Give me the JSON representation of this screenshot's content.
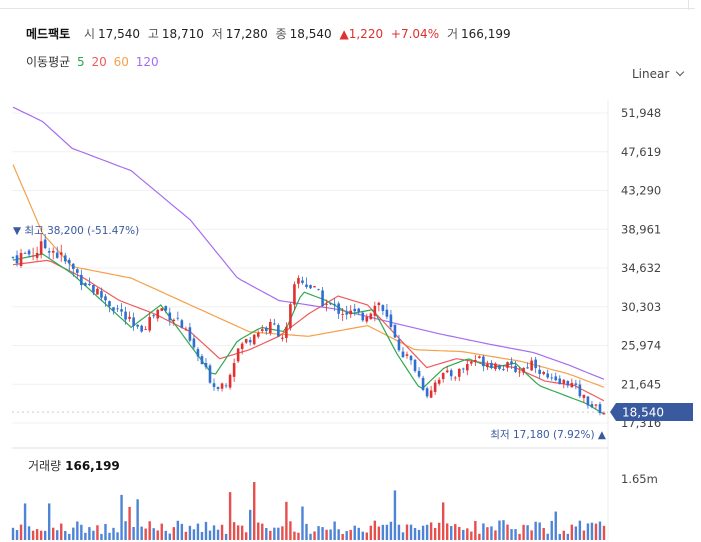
{
  "header": {
    "name": "메드팩토",
    "open_label": "시",
    "open": "17,540",
    "high_label": "고",
    "high": "18,710",
    "low_label": "저",
    "low": "17,280",
    "close_label": "종",
    "close": "18,540",
    "change": "▲1,220",
    "change_pct": "+7.04%",
    "volume_label": "거",
    "volume": "166,199"
  },
  "ma_legend": {
    "title": "이동평균",
    "p5": "5",
    "p20": "20",
    "p60": "60",
    "p120": "120"
  },
  "scale": {
    "label": "Linear"
  },
  "colors": {
    "up": "#e0302f",
    "down": "#2f6fcf",
    "ma5": "#2fa84f",
    "ma20": "#f05a5a",
    "ma60": "#f5a04a",
    "ma120": "#a66cf0",
    "price_tag": "#3a5aa0",
    "annotation": "#3a5aa0"
  },
  "annotations": {
    "high": "▼ 최고 38,200 (-51.47%)",
    "low": "최저 17,180 (7.92%) ▲"
  },
  "current_price": "18,540",
  "volume_panel": {
    "label": "거래량",
    "value": "166,199",
    "axis_tick": "1.65m"
  },
  "chart_data": {
    "type": "candlestick",
    "y_axis_ticks": [
      "51,948",
      "47,619",
      "43,290",
      "38,961",
      "34,632",
      "30,303",
      "25,974",
      "21,645",
      "17,316"
    ],
    "ylim": [
      17316,
      51948
    ],
    "ma_keypoints": {
      "ma5": [
        [
          0,
          35500
        ],
        [
          0.05,
          36200
        ],
        [
          0.1,
          34000
        ],
        [
          0.15,
          31000
        ],
        [
          0.2,
          28000
        ],
        [
          0.25,
          30500
        ],
        [
          0.3,
          26000
        ],
        [
          0.34,
          22500
        ],
        [
          0.38,
          26500
        ],
        [
          0.42,
          28000
        ],
        [
          0.46,
          27500
        ],
        [
          0.49,
          32000
        ],
        [
          0.53,
          31000
        ],
        [
          0.57,
          29500
        ],
        [
          0.61,
          30000
        ],
        [
          0.65,
          25000
        ],
        [
          0.69,
          21000
        ],
        [
          0.73,
          23500
        ],
        [
          0.77,
          24500
        ],
        [
          0.81,
          23500
        ],
        [
          0.85,
          24000
        ],
        [
          0.89,
          21500
        ],
        [
          0.93,
          20500
        ],
        [
          0.97,
          19500
        ],
        [
          1.0,
          18300
        ]
      ],
      "ma20": [
        [
          0,
          35000
        ],
        [
          0.06,
          35500
        ],
        [
          0.12,
          33500
        ],
        [
          0.18,
          31000
        ],
        [
          0.24,
          29500
        ],
        [
          0.3,
          27500
        ],
        [
          0.35,
          24500
        ],
        [
          0.4,
          25500
        ],
        [
          0.45,
          27000
        ],
        [
          0.5,
          29500
        ],
        [
          0.55,
          31500
        ],
        [
          0.6,
          30500
        ],
        [
          0.65,
          27000
        ],
        [
          0.7,
          23500
        ],
        [
          0.75,
          24500
        ],
        [
          0.8,
          24000
        ],
        [
          0.85,
          23500
        ],
        [
          0.9,
          22000
        ],
        [
          0.95,
          21500
        ],
        [
          1.0,
          19800
        ]
      ],
      "ma60": [
        [
          0,
          46200
        ],
        [
          0.05,
          38500
        ],
        [
          0.1,
          34800
        ],
        [
          0.2,
          33500
        ],
        [
          0.3,
          30500
        ],
        [
          0.4,
          27500
        ],
        [
          0.5,
          27000
        ],
        [
          0.6,
          28200
        ],
        [
          0.68,
          25500
        ],
        [
          0.76,
          25300
        ],
        [
          0.86,
          24200
        ],
        [
          0.94,
          22800
        ],
        [
          1.0,
          21300
        ]
      ],
      "ma120": [
        [
          0,
          52600
        ],
        [
          0.05,
          51000
        ],
        [
          0.1,
          48000
        ],
        [
          0.2,
          45500
        ],
        [
          0.3,
          40000
        ],
        [
          0.38,
          33500
        ],
        [
          0.45,
          31000
        ],
        [
          0.55,
          30000
        ],
        [
          0.65,
          28400
        ],
        [
          0.72,
          27300
        ],
        [
          0.8,
          26200
        ],
        [
          0.88,
          25200
        ],
        [
          0.94,
          23800
        ],
        [
          1.0,
          22200
        ]
      ]
    },
    "price_path": [
      [
        0,
        35800
      ],
      [
        0.03,
        36300
      ],
      [
        0.06,
        37200
      ],
      [
        0.1,
        34500
      ],
      [
        0.14,
        32000
      ],
      [
        0.18,
        29800
      ],
      [
        0.21,
        27500
      ],
      [
        0.25,
        30200
      ],
      [
        0.28,
        28800
      ],
      [
        0.31,
        25000
      ],
      [
        0.34,
        21500
      ],
      [
        0.36,
        21800
      ],
      [
        0.38,
        25500
      ],
      [
        0.41,
        27500
      ],
      [
        0.44,
        28200
      ],
      [
        0.46,
        26800
      ],
      [
        0.48,
        33500
      ],
      [
        0.5,
        32800
      ],
      [
        0.53,
        30500
      ],
      [
        0.56,
        29800
      ],
      [
        0.59,
        29200
      ],
      [
        0.62,
        30800
      ],
      [
        0.65,
        26000
      ],
      [
        0.68,
        23500
      ],
      [
        0.7,
        20500
      ],
      [
        0.72,
        22500
      ],
      [
        0.75,
        22800
      ],
      [
        0.78,
        24500
      ],
      [
        0.81,
        24000
      ],
      [
        0.84,
        23500
      ],
      [
        0.86,
        23200
      ],
      [
        0.88,
        24300
      ],
      [
        0.9,
        22500
      ],
      [
        0.92,
        21600
      ],
      [
        0.94,
        22000
      ],
      [
        0.96,
        20500
      ],
      [
        0.98,
        19200
      ],
      [
        1.0,
        18540
      ]
    ],
    "high_marker": 38200,
    "low_marker": 17180
  }
}
